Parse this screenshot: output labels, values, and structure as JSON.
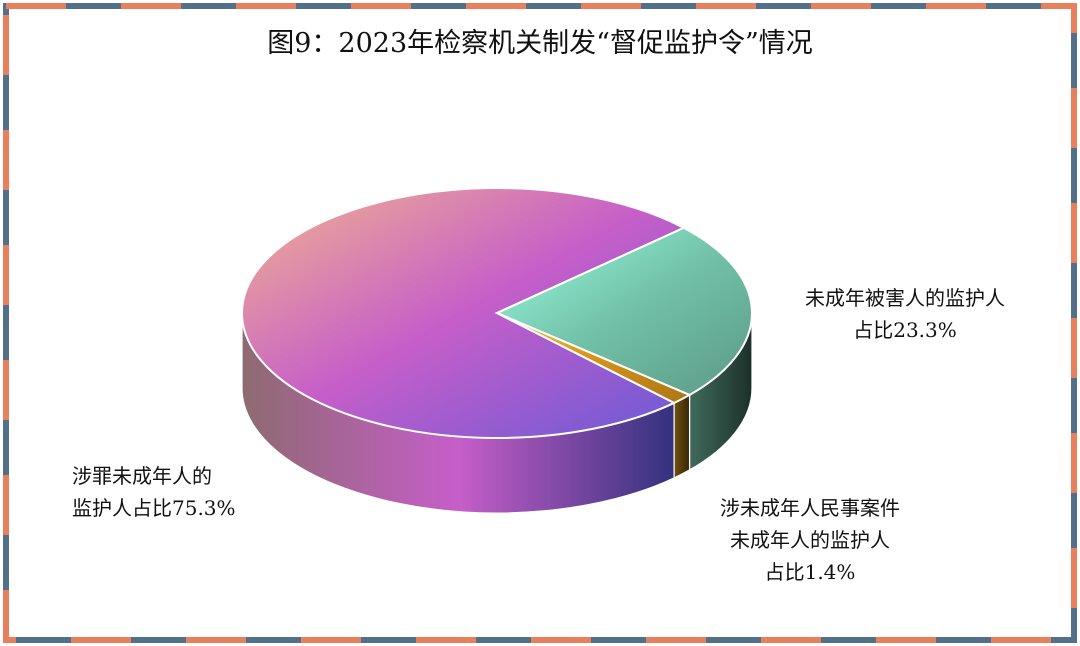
{
  "chart_data": {
    "type": "pie",
    "title": "图9：2023年检察机关制发“督促监护令”情况",
    "categories": [
      "涉罪未成年人的监护人",
      "未成年被害人的监护人",
      "涉未成年人民事案件未成年人的监护人"
    ],
    "values": [
      75.3,
      23.3,
      1.4
    ],
    "value_labels": [
      "占比75.3%",
      "占比23.3%",
      "占比1.4%"
    ],
    "colors": [
      "#c65ec9",
      "#72c1a8",
      "#d4941a"
    ]
  }
}
